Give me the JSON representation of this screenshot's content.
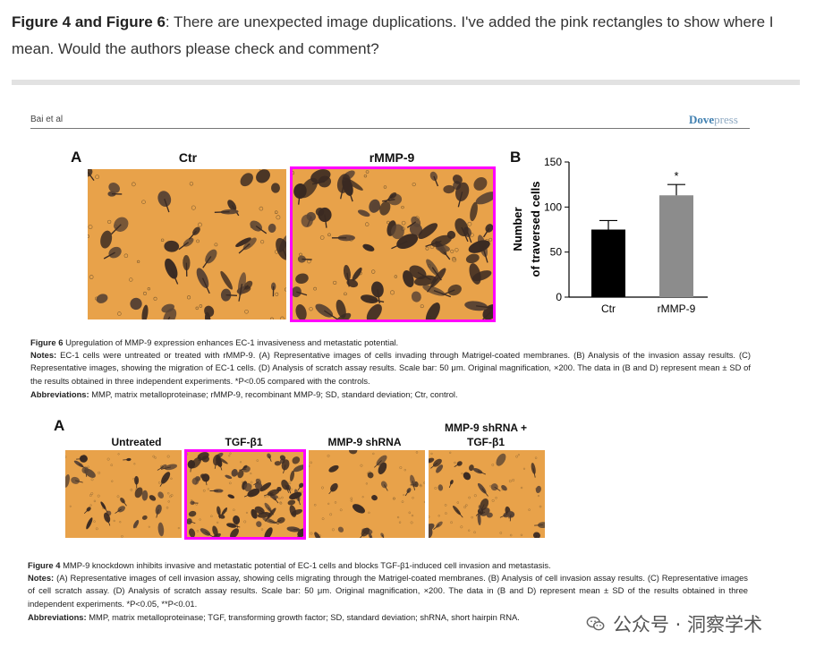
{
  "comment": {
    "figures_bold": "Figure 4 and Figure 6",
    "text": ": There are unexpected image duplications. I've added the pink rectangles to show where I mean. Would the authors please check and comment?"
  },
  "page_header": {
    "left": "Bai et al",
    "brand_dove": "Dove",
    "brand_press": "press"
  },
  "figure6": {
    "panel_a": "A",
    "panel_b": "B",
    "img_labels": [
      "Ctr",
      "rMMP-9"
    ],
    "caption_title_bold": "Figure 6",
    "caption_title": " Upregulation of MMP-9 expression enhances EC-1 invasiveness and metastatic potential.",
    "notes_bold": "Notes:",
    "notes": " EC-1 cells were untreated or treated with rMMP-9. (A) Representative images of cells invading through Matrigel-coated membranes. (B) Analysis of the invasion assay results. (C) Representative images, showing the migration of EC-1 cells. (D) Analysis of scratch assay results. Scale bar: 50 μm. Original magnification, ×200. The data in (B and D) represent mean ± SD of the results obtained in three independent experiments. *P<0.05 compared with the controls.",
    "abbrev_bold": "Abbreviations:",
    "abbrev": " MMP, matrix metalloproteinase; rMMP-9, recombinant MMP-9; SD, standard deviation; Ctr, control."
  },
  "figure4": {
    "panel_a": "A",
    "img_labels": [
      "Untreated",
      "TGF-β1",
      "MMP-9 shRNA",
      "MMP-9 shRNA +",
      "TGF-β1"
    ],
    "caption_title_bold": "Figure 4",
    "caption_title": " MMP-9 knockdown inhibits invasive and metastatic potential of EC-1 cells and blocks TGF-β1-induced cell invasion and metastasis.",
    "notes_bold": "Notes:",
    "notes": " (A) Representative images of cell invasion assay, showing cells migrating through the Matrigel-coated membranes. (B) Analysis of cell invasion assay results. (C) Representative images of cell scratch assay. (D) Analysis of scratch assay results. Scale bar: 50 μm. Original magnification, ×200. The data in (B and D) represent mean ± SD of the results obtained in three independent experiments. *P<0.05, **P<0.01.",
    "abbrev_bold": "Abbreviations:",
    "abbrev": " MMP, matrix metalloproteinase; TGF, transforming growth factor; SD, standard deviation; shRNA, short hairpin RNA."
  },
  "watermark": {
    "text": "公众号 · 洞察学术",
    "icon": "wechat-icon"
  },
  "colors": {
    "highlight": "#ff00ff",
    "micro_bg": "#e8a24a",
    "bar_ctr": "#000000",
    "bar_rmmp": "#8c8c8c"
  },
  "chart_data": {
    "type": "bar",
    "categories": [
      "Ctr",
      "rMMP-9"
    ],
    "values": [
      75,
      113
    ],
    "errors": [
      10,
      12
    ],
    "ylabel_line1": "Number",
    "ylabel_line2": "of traversed cells",
    "ylim": [
      0,
      150
    ],
    "yticks": [
      0,
      50,
      100,
      150
    ],
    "annotations": [
      {
        "category": "rMMP-9",
        "text": "*"
      }
    ],
    "grid": false
  }
}
